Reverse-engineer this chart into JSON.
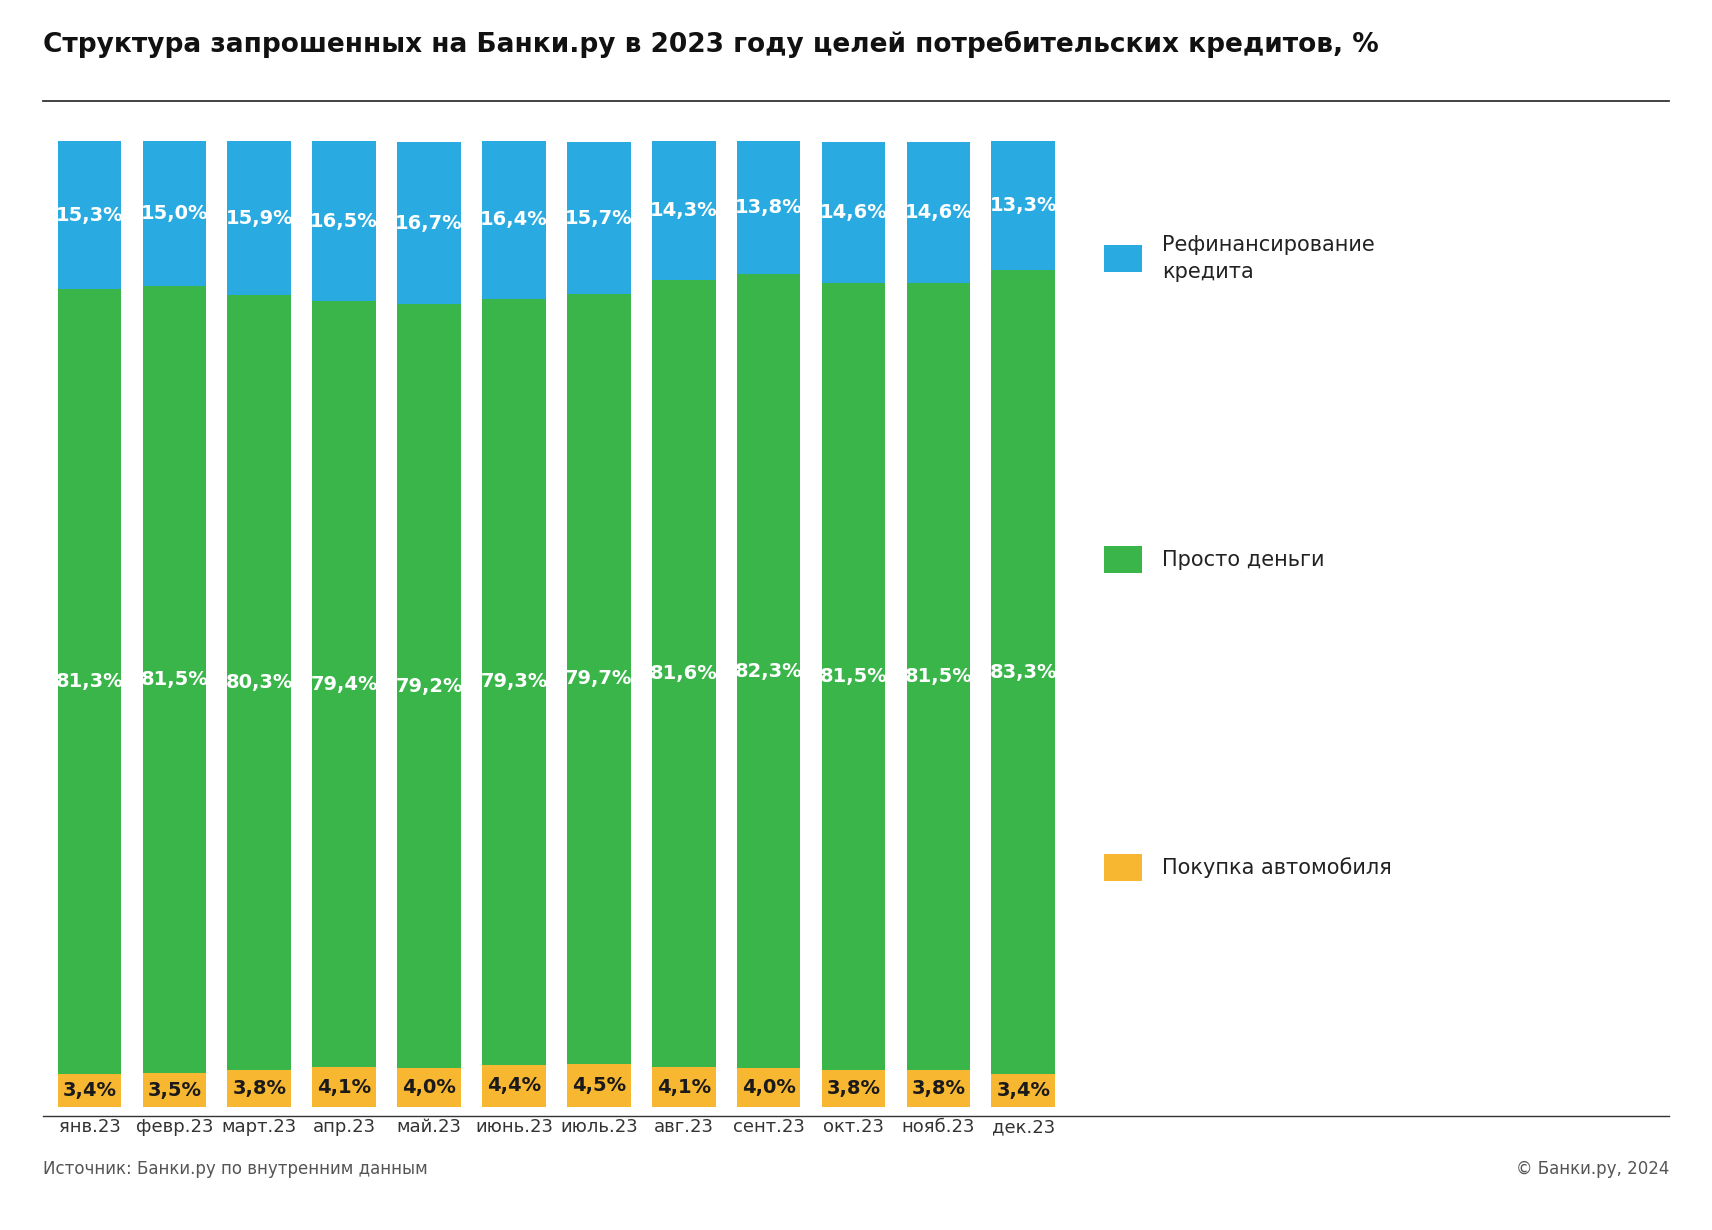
{
  "title": "Структура запрошенных на Банки.ру в 2023 году целей потребительских кредитов, %",
  "source_left": "Источник: Банки.ру по внутренним данным",
  "source_right": "© Банки.ру, 2024",
  "categories": [
    "янв.23",
    "февр.23",
    "март.23",
    "апр.23",
    "май.23",
    "июнь.23",
    "июль.23",
    "авг.23",
    "сент.23",
    "окт.23",
    "нояб.23",
    "дек.23"
  ],
  "refi": [
    15.3,
    15.0,
    15.9,
    16.5,
    16.7,
    16.4,
    15.7,
    14.3,
    13.8,
    14.6,
    14.6,
    13.3
  ],
  "money": [
    81.3,
    81.5,
    80.3,
    79.4,
    79.2,
    79.3,
    79.7,
    81.6,
    82.3,
    81.5,
    81.5,
    83.3
  ],
  "auto": [
    3.4,
    3.5,
    3.8,
    4.1,
    4.0,
    4.4,
    4.5,
    4.1,
    4.0,
    3.8,
    3.8,
    3.4
  ],
  "refi_labels": [
    "15,3%",
    "15,0%",
    "15,9%",
    "16,5%",
    "16,7%",
    "16,4%",
    "15,7%",
    "14,3%",
    "13,8%",
    "14,6%",
    "14,6%",
    "13,3%"
  ],
  "money_labels": [
    "81,3%",
    "81,5%",
    "80,3%",
    "79,4%",
    "79,2%",
    "79,3%",
    "79,7%",
    "81,6%",
    "82,3%",
    "81,5%",
    "81,5%",
    "83,3%"
  ],
  "auto_labels": [
    "3,4%",
    "3,5%",
    "3,8%",
    "4,1%",
    "4,0%",
    "4,4%",
    "4,5%",
    "4,1%",
    "4,0%",
    "3,8%",
    "3,8%",
    "3,4%"
  ],
  "color_refi": "#29ABE2",
  "color_money": "#39B54A",
  "color_auto": "#F7B731",
  "legend_refi": "Рефинансирование\nкредита",
  "legend_money": "Просто деньги",
  "legend_auto": "Покупка автомобиля",
  "bg_color": "#FFFFFF",
  "bar_width": 0.75,
  "title_fontsize": 19,
  "label_fontsize": 14,
  "tick_fontsize": 13,
  "legend_fontsize": 15,
  "source_fontsize": 12
}
